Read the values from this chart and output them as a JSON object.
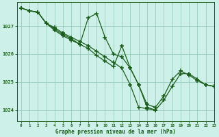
{
  "title": "Graphe pression niveau de la mer (hPa)",
  "background_color": "#cdf0e8",
  "grid_color": "#99ccbb",
  "line_color": "#1a5c1a",
  "xlim": [
    -0.5,
    23
  ],
  "ylim": [
    1023.6,
    1027.85
  ],
  "yticks": [
    1024,
    1025,
    1026,
    1027
  ],
  "xticks": [
    0,
    1,
    2,
    3,
    4,
    5,
    6,
    7,
    8,
    9,
    10,
    11,
    12,
    13,
    14,
    15,
    16,
    17,
    18,
    19,
    20,
    21,
    22,
    23
  ],
  "series": [
    {
      "x": [
        0,
        1,
        2,
        3,
        4,
        5,
        6,
        7,
        8,
        9,
        10,
        11,
        12,
        13,
        14,
        15,
        16,
        17,
        18,
        19,
        20,
        21,
        22,
        23
      ],
      "y": [
        1027.65,
        1027.55,
        1027.5,
        1027.1,
        1026.95,
        1026.75,
        1026.6,
        1026.45,
        1026.3,
        1026.1,
        1025.9,
        1025.7,
        1025.5,
        1024.9,
        1024.1,
        1024.05,
        1024.0,
        1024.35,
        1024.85,
        1025.3,
        1025.3,
        1025.1,
        1024.9,
        1024.85
      ]
    },
    {
      "x": [
        0,
        1,
        2,
        3,
        4,
        5,
        6,
        7,
        8,
        9,
        10,
        11,
        12,
        13,
        14,
        15,
        16
      ],
      "y": [
        1027.65,
        1027.55,
        1027.5,
        1027.1,
        1026.9,
        1026.7,
        1026.55,
        1026.35,
        1027.3,
        1027.45,
        1026.6,
        1026.0,
        1025.9,
        1025.5,
        1024.9,
        1024.1,
        1024.0
      ]
    },
    {
      "x": [
        0,
        1,
        2,
        3,
        4,
        5,
        6,
        7,
        8,
        9,
        10,
        11,
        12,
        13,
        14,
        15,
        16,
        17,
        18,
        19,
        20,
        21,
        22,
        23
      ],
      "y": [
        1027.65,
        1027.55,
        1027.5,
        1027.1,
        1026.85,
        1026.65,
        1026.5,
        1026.35,
        1026.2,
        1025.95,
        1025.75,
        1025.55,
        1026.3,
        1025.5,
        1024.9,
        1024.2,
        1024.1,
        1024.5,
        1025.1,
        1025.4,
        1025.25,
        1025.05,
        1024.9,
        1024.85
      ]
    }
  ]
}
